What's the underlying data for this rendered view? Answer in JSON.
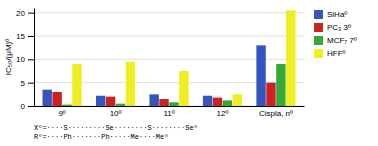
{
  "chart_data": {
    "type": "bar",
    "categories": [
      "9º",
      "10º",
      "11º",
      "12º",
      "Cispla, nº"
    ],
    "series": [
      {
        "name": "SiHaº",
        "color": "#3456be",
        "values": [
          3.5,
          2.2,
          2.5,
          2.2,
          13.0
        ]
      },
      {
        "name": "PC₃ 3º",
        "color": "#cc2222",
        "values": [
          3.0,
          2.0,
          1.5,
          1.8,
          5.0
        ]
      },
      {
        "name": "MCF₇ 7º",
        "color": "#33aa33",
        "values": [
          0.3,
          0.5,
          0.8,
          1.2,
          9.0
        ]
      },
      {
        "name": "HFFº",
        "color": "#eeee22",
        "values": [
          9.0,
          9.5,
          7.5,
          2.5,
          20.5
        ]
      }
    ],
    "y_label": "IC₅₀/(μM)º",
    "annotations": [
      "Xº=····S·········Se········S········Seº",
      "Rº=····Ph·······Ph·····Me····Meº"
    ],
    "ylim": [
      0,
      21
    ],
    "yticks": [
      0,
      5,
      10,
      15,
      20
    ],
    "grid": true,
    "legend": "right"
  }
}
